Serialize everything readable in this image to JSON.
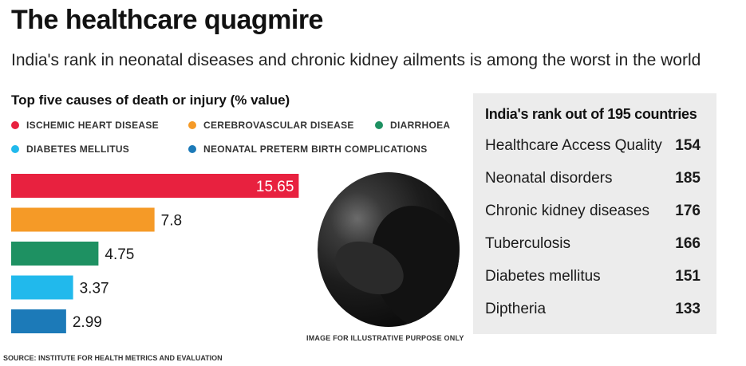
{
  "header": {
    "title": "The healthcare quagmire",
    "subtitle": "India's rank in neonatal diseases and chronic kidney ailments is among the worst in the world"
  },
  "chart_data": {
    "type": "bar",
    "orientation": "horizontal",
    "title": "Top five causes of death or injury (% value)",
    "categories": [
      "ISCHEMIC HEART DISEASE",
      "CEREBROVASCULAR DISEASE",
      "DIARRHOEA",
      "DIABETES MELLITUS",
      "NEONATAL PRETERM BIRTH COMPLICATIONS"
    ],
    "values": [
      15.65,
      7.8,
      4.75,
      3.37,
      2.99
    ],
    "value_labels": [
      "15.65",
      "7.8",
      "4.75",
      "3.37",
      "2.99"
    ],
    "colors": [
      "#e8213f",
      "#f59a27",
      "#1e9162",
      "#21b9ec",
      "#1c7ab8"
    ],
    "xlim": [
      0,
      16.5
    ],
    "grid": false,
    "legend_position": "top"
  },
  "photo": {
    "caption": "IMAGE FOR ILLUSTRATIVE PURPOSE ONLY"
  },
  "ranking": {
    "heading": "India's rank out of 195 countries",
    "rows": [
      {
        "label": "Healthcare Access Quality",
        "value": "154"
      },
      {
        "label": "Neonatal disorders",
        "value": "185"
      },
      {
        "label": "Chronic kidney diseases",
        "value": "176"
      },
      {
        "label": "Tuberculosis",
        "value": "166"
      },
      {
        "label": "Diabetes mellitus",
        "value": "151"
      },
      {
        "label": "Diptheria",
        "value": "133"
      }
    ]
  },
  "footer": {
    "source": "SOURCE: INSTITUTE FOR HEALTH METRICS AND EVALUATION"
  }
}
